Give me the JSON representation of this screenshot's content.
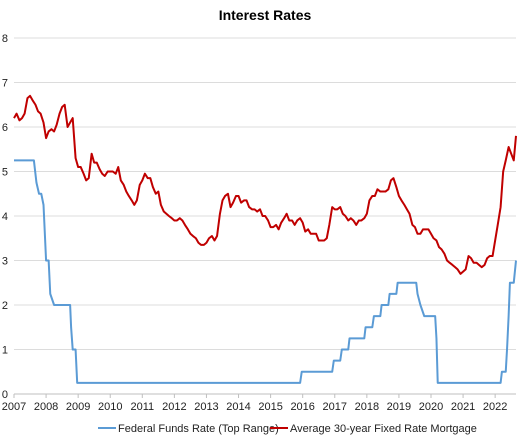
{
  "chart_data": {
    "type": "line",
    "title": "Interest Rates",
    "xlabel": "",
    "ylabel": "",
    "x_ticks": [
      "2007",
      "2008",
      "2009",
      "2010",
      "2011",
      "2012",
      "2013",
      "2014",
      "2015",
      "2016",
      "2017",
      "2018",
      "2019",
      "2020",
      "2021",
      "2022"
    ],
    "y_ticks": [
      "0",
      "1",
      "2",
      "3",
      "4",
      "5",
      "6",
      "7",
      "8"
    ],
    "xlim": [
      2007.0,
      2022.65
    ],
    "ylim": [
      0,
      8
    ],
    "grid": true,
    "legend_position": "bottom",
    "series": [
      {
        "name": "Federal Funds Rate (Top Range)",
        "color": "#5b9bd5",
        "points": [
          [
            2007.0,
            5.25
          ],
          [
            2007.62,
            5.25
          ],
          [
            2007.7,
            4.75
          ],
          [
            2007.78,
            4.5
          ],
          [
            2007.85,
            4.5
          ],
          [
            2007.92,
            4.25
          ],
          [
            2008.0,
            3.0
          ],
          [
            2008.08,
            3.0
          ],
          [
            2008.13,
            2.25
          ],
          [
            2008.25,
            2.0
          ],
          [
            2008.75,
            2.0
          ],
          [
            2008.78,
            1.5
          ],
          [
            2008.83,
            1.0
          ],
          [
            2008.92,
            1.0
          ],
          [
            2008.97,
            0.25
          ],
          [
            2015.92,
            0.25
          ],
          [
            2015.97,
            0.5
          ],
          [
            2016.92,
            0.5
          ],
          [
            2016.97,
            0.75
          ],
          [
            2017.17,
            0.75
          ],
          [
            2017.22,
            1.0
          ],
          [
            2017.42,
            1.0
          ],
          [
            2017.46,
            1.25
          ],
          [
            2017.92,
            1.25
          ],
          [
            2017.96,
            1.5
          ],
          [
            2018.17,
            1.5
          ],
          [
            2018.22,
            1.75
          ],
          [
            2018.42,
            1.75
          ],
          [
            2018.46,
            2.0
          ],
          [
            2018.67,
            2.0
          ],
          [
            2018.71,
            2.25
          ],
          [
            2018.92,
            2.25
          ],
          [
            2018.96,
            2.5
          ],
          [
            2019.54,
            2.5
          ],
          [
            2019.58,
            2.25
          ],
          [
            2019.67,
            2.0
          ],
          [
            2019.79,
            1.75
          ],
          [
            2020.13,
            1.75
          ],
          [
            2020.17,
            1.25
          ],
          [
            2020.21,
            0.25
          ],
          [
            2022.17,
            0.25
          ],
          [
            2022.21,
            0.5
          ],
          [
            2022.33,
            0.5
          ],
          [
            2022.37,
            1.0
          ],
          [
            2022.42,
            1.75
          ],
          [
            2022.46,
            2.5
          ],
          [
            2022.58,
            2.5
          ],
          [
            2022.65,
            3.0
          ]
        ]
      },
      {
        "name": "Average 30-year Fixed Rate Mortgage",
        "color": "#c00000",
        "points": [
          [
            2007.0,
            6.2
          ],
          [
            2007.08,
            6.3
          ],
          [
            2007.17,
            6.15
          ],
          [
            2007.25,
            6.2
          ],
          [
            2007.33,
            6.3
          ],
          [
            2007.42,
            6.65
          ],
          [
            2007.5,
            6.7
          ],
          [
            2007.58,
            6.6
          ],
          [
            2007.67,
            6.5
          ],
          [
            2007.75,
            6.35
          ],
          [
            2007.83,
            6.3
          ],
          [
            2007.92,
            6.1
          ],
          [
            2008.0,
            5.75
          ],
          [
            2008.08,
            5.9
          ],
          [
            2008.17,
            5.95
          ],
          [
            2008.25,
            5.9
          ],
          [
            2008.33,
            6.05
          ],
          [
            2008.42,
            6.3
          ],
          [
            2008.5,
            6.45
          ],
          [
            2008.58,
            6.5
          ],
          [
            2008.67,
            6.0
          ],
          [
            2008.75,
            6.1
          ],
          [
            2008.83,
            6.2
          ],
          [
            2008.92,
            5.3
          ],
          [
            2009.0,
            5.1
          ],
          [
            2009.08,
            5.1
          ],
          [
            2009.17,
            4.95
          ],
          [
            2009.25,
            4.8
          ],
          [
            2009.33,
            4.85
          ],
          [
            2009.42,
            5.4
          ],
          [
            2009.5,
            5.2
          ],
          [
            2009.58,
            5.2
          ],
          [
            2009.67,
            5.05
          ],
          [
            2009.75,
            4.95
          ],
          [
            2009.83,
            4.9
          ],
          [
            2009.92,
            5.0
          ],
          [
            2010.0,
            5.0
          ],
          [
            2010.08,
            5.0
          ],
          [
            2010.17,
            4.95
          ],
          [
            2010.25,
            5.1
          ],
          [
            2010.33,
            4.8
          ],
          [
            2010.42,
            4.7
          ],
          [
            2010.5,
            4.55
          ],
          [
            2010.58,
            4.45
          ],
          [
            2010.67,
            4.35
          ],
          [
            2010.75,
            4.25
          ],
          [
            2010.83,
            4.35
          ],
          [
            2010.92,
            4.7
          ],
          [
            2011.0,
            4.8
          ],
          [
            2011.08,
            4.95
          ],
          [
            2011.17,
            4.85
          ],
          [
            2011.25,
            4.85
          ],
          [
            2011.33,
            4.65
          ],
          [
            2011.42,
            4.5
          ],
          [
            2011.5,
            4.55
          ],
          [
            2011.58,
            4.25
          ],
          [
            2011.67,
            4.1
          ],
          [
            2011.75,
            4.05
          ],
          [
            2011.83,
            4.0
          ],
          [
            2011.92,
            3.95
          ],
          [
            2012.0,
            3.9
          ],
          [
            2012.08,
            3.9
          ],
          [
            2012.17,
            3.95
          ],
          [
            2012.25,
            3.9
          ],
          [
            2012.33,
            3.8
          ],
          [
            2012.42,
            3.7
          ],
          [
            2012.5,
            3.6
          ],
          [
            2012.58,
            3.55
          ],
          [
            2012.67,
            3.5
          ],
          [
            2012.75,
            3.4
          ],
          [
            2012.83,
            3.35
          ],
          [
            2012.92,
            3.35
          ],
          [
            2013.0,
            3.4
          ],
          [
            2013.08,
            3.5
          ],
          [
            2013.17,
            3.55
          ],
          [
            2013.25,
            3.45
          ],
          [
            2013.33,
            3.55
          ],
          [
            2013.42,
            4.05
          ],
          [
            2013.5,
            4.35
          ],
          [
            2013.58,
            4.45
          ],
          [
            2013.67,
            4.5
          ],
          [
            2013.75,
            4.2
          ],
          [
            2013.83,
            4.3
          ],
          [
            2013.92,
            4.45
          ],
          [
            2014.0,
            4.45
          ],
          [
            2014.08,
            4.3
          ],
          [
            2014.17,
            4.35
          ],
          [
            2014.25,
            4.35
          ],
          [
            2014.33,
            4.2
          ],
          [
            2014.42,
            4.15
          ],
          [
            2014.5,
            4.15
          ],
          [
            2014.58,
            4.1
          ],
          [
            2014.67,
            4.15
          ],
          [
            2014.75,
            4.0
          ],
          [
            2014.83,
            4.0
          ],
          [
            2014.92,
            3.9
          ],
          [
            2015.0,
            3.75
          ],
          [
            2015.08,
            3.75
          ],
          [
            2015.17,
            3.8
          ],
          [
            2015.25,
            3.7
          ],
          [
            2015.33,
            3.85
          ],
          [
            2015.42,
            3.95
          ],
          [
            2015.5,
            4.05
          ],
          [
            2015.58,
            3.9
          ],
          [
            2015.67,
            3.9
          ],
          [
            2015.75,
            3.8
          ],
          [
            2015.83,
            3.9
          ],
          [
            2015.92,
            3.95
          ],
          [
            2016.0,
            3.85
          ],
          [
            2016.08,
            3.65
          ],
          [
            2016.17,
            3.7
          ],
          [
            2016.25,
            3.6
          ],
          [
            2016.33,
            3.6
          ],
          [
            2016.42,
            3.6
          ],
          [
            2016.5,
            3.45
          ],
          [
            2016.58,
            3.45
          ],
          [
            2016.67,
            3.45
          ],
          [
            2016.75,
            3.5
          ],
          [
            2016.83,
            3.8
          ],
          [
            2016.92,
            4.2
          ],
          [
            2017.0,
            4.15
          ],
          [
            2017.08,
            4.15
          ],
          [
            2017.17,
            4.2
          ],
          [
            2017.25,
            4.05
          ],
          [
            2017.33,
            4.0
          ],
          [
            2017.42,
            3.9
          ],
          [
            2017.5,
            3.95
          ],
          [
            2017.58,
            3.9
          ],
          [
            2017.67,
            3.8
          ],
          [
            2017.75,
            3.9
          ],
          [
            2017.83,
            3.9
          ],
          [
            2017.92,
            3.95
          ],
          [
            2018.0,
            4.05
          ],
          [
            2018.08,
            4.35
          ],
          [
            2018.17,
            4.45
          ],
          [
            2018.25,
            4.45
          ],
          [
            2018.33,
            4.6
          ],
          [
            2018.42,
            4.55
          ],
          [
            2018.5,
            4.55
          ],
          [
            2018.58,
            4.55
          ],
          [
            2018.67,
            4.6
          ],
          [
            2018.75,
            4.8
          ],
          [
            2018.83,
            4.85
          ],
          [
            2018.92,
            4.65
          ],
          [
            2019.0,
            4.45
          ],
          [
            2019.08,
            4.35
          ],
          [
            2019.17,
            4.25
          ],
          [
            2019.25,
            4.15
          ],
          [
            2019.33,
            4.05
          ],
          [
            2019.42,
            3.8
          ],
          [
            2019.5,
            3.75
          ],
          [
            2019.58,
            3.6
          ],
          [
            2019.67,
            3.6
          ],
          [
            2019.75,
            3.7
          ],
          [
            2019.83,
            3.7
          ],
          [
            2019.92,
            3.7
          ],
          [
            2020.0,
            3.6
          ],
          [
            2020.08,
            3.5
          ],
          [
            2020.17,
            3.45
          ],
          [
            2020.25,
            3.3
          ],
          [
            2020.33,
            3.25
          ],
          [
            2020.42,
            3.15
          ],
          [
            2020.5,
            3.0
          ],
          [
            2020.58,
            2.95
          ],
          [
            2020.67,
            2.9
          ],
          [
            2020.75,
            2.85
          ],
          [
            2020.83,
            2.8
          ],
          [
            2020.92,
            2.7
          ],
          [
            2021.0,
            2.75
          ],
          [
            2021.08,
            2.8
          ],
          [
            2021.17,
            3.1
          ],
          [
            2021.25,
            3.05
          ],
          [
            2021.33,
            2.95
          ],
          [
            2021.42,
            2.95
          ],
          [
            2021.5,
            2.9
          ],
          [
            2021.58,
            2.85
          ],
          [
            2021.67,
            2.9
          ],
          [
            2021.75,
            3.05
          ],
          [
            2021.83,
            3.1
          ],
          [
            2021.92,
            3.1
          ],
          [
            2022.0,
            3.45
          ],
          [
            2022.08,
            3.8
          ],
          [
            2022.17,
            4.2
          ],
          [
            2022.25,
            5.0
          ],
          [
            2022.33,
            5.25
          ],
          [
            2022.42,
            5.55
          ],
          [
            2022.5,
            5.4
          ],
          [
            2022.58,
            5.25
          ],
          [
            2022.65,
            5.8
          ]
        ]
      }
    ]
  }
}
